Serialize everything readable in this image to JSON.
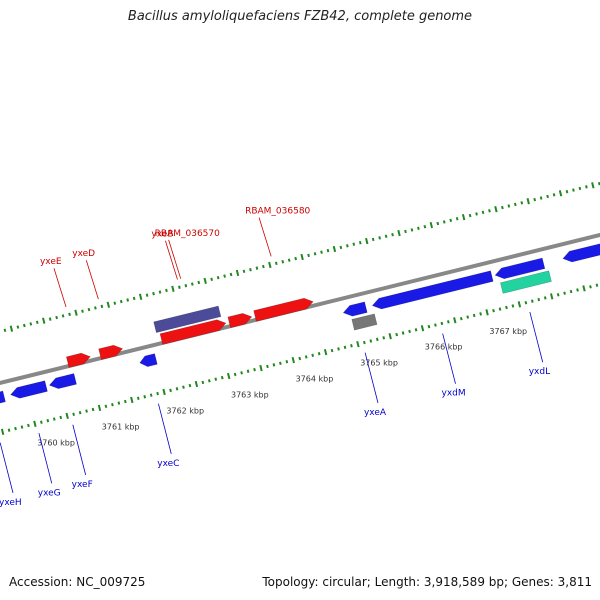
{
  "header": {
    "title": "Bacillus amyloliquefaciens FZB42, complete genome"
  },
  "footer": {
    "accession": "Accession: NC_009725",
    "summary": "Topology: circular; Length: 3,918,589 bp; Genes: 3,811"
  },
  "colors": {
    "forward_cds": "#ee1111",
    "reverse_cds": "#1a1ae6",
    "forward_other": "#4b4b99",
    "reverse_other": "#777777",
    "rna": "#22d3a0",
    "backbone": "#888888",
    "tick": "#228822",
    "forward_label": "#cc0000",
    "reverse_label": "#0000cc"
  },
  "scale": {
    "unit": "kbp",
    "ticks": [
      {
        "kbp": 3760,
        "label": "3760 kbp"
      },
      {
        "kbp": 3761,
        "label": "3761 kbp"
      },
      {
        "kbp": 3762,
        "label": "3762 kbp"
      },
      {
        "kbp": 3763,
        "label": "3763 kbp"
      },
      {
        "kbp": 3764,
        "label": "3764 kbp"
      },
      {
        "kbp": 3765,
        "label": "3765 kbp"
      },
      {
        "kbp": 3766,
        "label": "3766 kbp"
      },
      {
        "kbp": 3767,
        "label": "3767 kbp"
      }
    ]
  },
  "features": [
    {
      "name": "yxeH",
      "strand": "-",
      "kind": "cds",
      "start": 3759.2,
      "end": 3759.65,
      "label": "yxeH"
    },
    {
      "name": "yxeG",
      "strand": "-",
      "kind": "cds",
      "start": 3759.75,
      "end": 3760.3,
      "label": "yxeG"
    },
    {
      "name": "yxeF",
      "strand": "-",
      "kind": "cds",
      "start": 3760.35,
      "end": 3760.75,
      "label": "yxeF"
    },
    {
      "name": "yxeE",
      "strand": "+",
      "kind": "cds",
      "start": 3760.7,
      "end": 3761.05,
      "label": "yxeE"
    },
    {
      "name": "yxeD",
      "strand": "+",
      "kind": "cds",
      "start": 3761.2,
      "end": 3761.55,
      "label": "yxeD"
    },
    {
      "name": "yxeC",
      "strand": "-",
      "kind": "cds",
      "start": 3761.75,
      "end": 3762.0,
      "label": "yxeC"
    },
    {
      "name": "yxeB",
      "strand": "+",
      "kind": "other",
      "start": 3762.1,
      "end": 3763.1,
      "label": "yxeB"
    },
    {
      "name": "RBAM_036570",
      "strand": "+",
      "kind": "cds",
      "start": 3762.15,
      "end": 3763.15,
      "label": "RBAM_036570"
    },
    {
      "name": "RBAM_036570b",
      "strand": "+",
      "kind": "cds",
      "start": 3763.2,
      "end": 3763.55,
      "label": ""
    },
    {
      "name": "RBAM_036580",
      "strand": "+",
      "kind": "cds",
      "start": 3763.6,
      "end": 3764.5,
      "label": "RBAM_036580"
    },
    {
      "name": "yxeA",
      "strand": "-",
      "kind": "cds",
      "start": 3764.9,
      "end": 3765.25,
      "label": "yxeA"
    },
    {
      "name": "yxeA-other",
      "strand": "-",
      "kind": "other",
      "start": 3765.0,
      "end": 3765.35,
      "label": ""
    },
    {
      "name": "yxdM",
      "strand": "-",
      "kind": "cds",
      "start": 3765.35,
      "end": 3767.2,
      "label": "yxdM"
    },
    {
      "name": "yxdL",
      "strand": "-",
      "kind": "cds",
      "start": 3767.25,
      "end": 3768.0,
      "label": "yxdL"
    },
    {
      "name": "yxdL-rna",
      "strand": "-",
      "kind": "rna",
      "start": 3767.3,
      "end": 3768.05,
      "label": ""
    },
    {
      "name": "next-gene",
      "strand": "-",
      "kind": "cds",
      "start": 3768.3,
      "end": 3768.9,
      "label": ""
    }
  ]
}
